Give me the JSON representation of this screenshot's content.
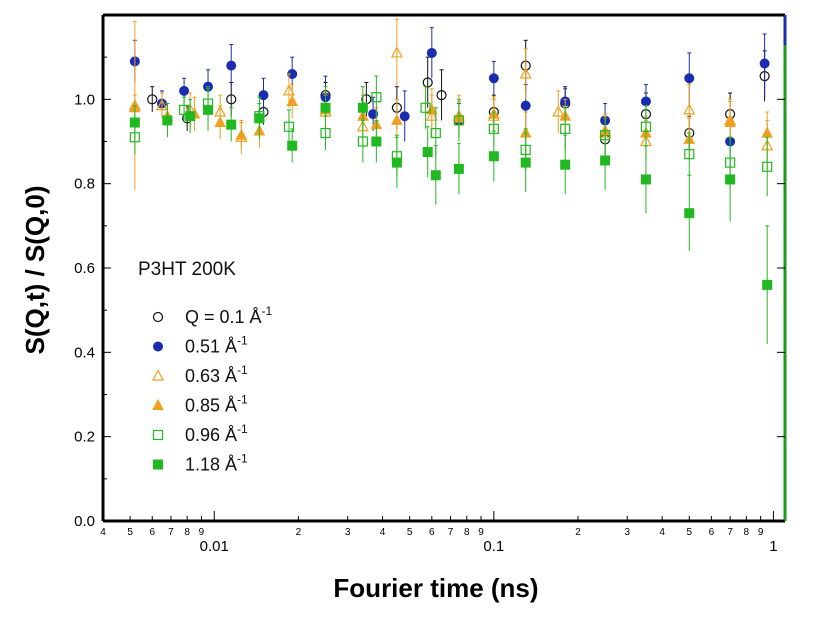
{
  "chart_data": {
    "type": "scatter",
    "xscale": "log",
    "xlim": [
      0.004,
      1.1
    ],
    "ylim": [
      0.0,
      1.2
    ],
    "xlabel": "Fourier time (ns)",
    "ylabel": "S(Q,t) / S(Q,0)",
    "annotation": "P3HT 200K",
    "yticks": [
      "0.0",
      "0.2",
      "0.4",
      "0.6",
      "0.8",
      "1.0"
    ],
    "xticks_major": [
      "0.01",
      "0.1",
      "1"
    ],
    "xticks_minor": [
      "4",
      "5",
      "6",
      "7",
      "8",
      "9",
      "2",
      "3",
      "4",
      "5",
      "6",
      "7",
      "8",
      "9",
      "2",
      "3",
      "4",
      "5",
      "6",
      "7",
      "8",
      "9"
    ],
    "legend_position": "left",
    "series": [
      {
        "name": "Q = 0.1 Å",
        "legend_prefix": "Q = 0.1 Å",
        "sup": "-1",
        "marker": "circle-open",
        "color": "#111111",
        "x": [
          0.006,
          0.008,
          0.0115,
          0.015,
          0.025,
          0.035,
          0.045,
          0.058,
          0.065,
          0.1,
          0.13,
          0.18,
          0.25,
          0.35,
          0.5,
          0.7,
          0.93
        ],
        "y": [
          1.0,
          0.955,
          1.0,
          0.97,
          1.01,
          1.0,
          0.98,
          1.04,
          1.01,
          0.97,
          1.08,
          0.99,
          0.905,
          0.965,
          0.92,
          0.965,
          1.055
        ],
        "err": [
          0.03,
          0.03,
          0.04,
          0.03,
          0.03,
          0.04,
          0.05,
          0.06,
          0.06,
          0.04,
          0.06,
          0.04,
          0.04,
          0.05,
          0.04,
          0.05,
          0.06
        ]
      },
      {
        "name": "0.51 Å",
        "legend_prefix": "0.51 Å",
        "sup": "-1",
        "marker": "circle-filled",
        "color": "#1a2db0",
        "x": [
          0.0052,
          0.0065,
          0.0078,
          0.0095,
          0.0115,
          0.015,
          0.019,
          0.025,
          0.037,
          0.048,
          0.06,
          0.075,
          0.1,
          0.13,
          0.18,
          0.25,
          0.35,
          0.5,
          0.7,
          0.93
        ],
        "y": [
          1.09,
          0.99,
          1.02,
          1.03,
          1.08,
          1.01,
          1.06,
          1.005,
          0.965,
          0.96,
          1.11,
          0.95,
          1.05,
          0.985,
          0.995,
          0.95,
          0.995,
          1.05,
          0.9,
          1.085
        ],
        "err": [
          0.05,
          0.03,
          0.03,
          0.04,
          0.05,
          0.04,
          0.04,
          0.05,
          0.04,
          0.06,
          0.06,
          0.04,
          0.04,
          0.05,
          0.03,
          0.04,
          0.04,
          0.06,
          0.05,
          0.07
        ]
      },
      {
        "name": "0.63 Å",
        "legend_prefix": "0.63 Å",
        "sup": "-1",
        "marker": "triangle-open",
        "color": "#f0a020",
        "x": [
          0.0052,
          0.0065,
          0.0082,
          0.0105,
          0.0125,
          0.0185,
          0.025,
          0.034,
          0.045,
          0.06,
          0.075,
          0.1,
          0.13,
          0.17,
          0.25,
          0.35,
          0.5,
          0.7,
          0.95
        ],
        "y": [
          0.985,
          0.985,
          0.975,
          0.97,
          0.91,
          1.02,
          0.97,
          0.935,
          1.11,
          0.96,
          0.96,
          0.96,
          1.06,
          0.97,
          0.92,
          0.9,
          0.975,
          0.95,
          0.89
        ],
        "err": [
          0.2,
          0.03,
          0.04,
          0.04,
          0.04,
          0.04,
          0.04,
          0.05,
          0.08,
          0.05,
          0.05,
          0.04,
          0.06,
          0.05,
          0.04,
          0.05,
          0.06,
          0.05,
          0.06
        ]
      },
      {
        "name": "0.85 Å",
        "legend_prefix": "0.85 Å",
        "sup": "-1",
        "marker": "triangle-filled",
        "color": "#f0a020",
        "x": [
          0.0052,
          0.0068,
          0.0085,
          0.0105,
          0.0125,
          0.0145,
          0.019,
          0.025,
          0.034,
          0.038,
          0.045,
          0.06,
          0.075,
          0.1,
          0.13,
          0.18,
          0.25,
          0.35,
          0.5,
          0.7,
          0.95
        ],
        "y": [
          0.98,
          0.96,
          0.965,
          0.945,
          0.915,
          0.925,
          0.995,
          0.975,
          0.96,
          0.94,
          0.95,
          0.975,
          0.955,
          0.965,
          0.92,
          0.96,
          0.925,
          0.92,
          0.905,
          0.945,
          0.92
        ],
        "err": [
          0.03,
          0.03,
          0.04,
          0.04,
          0.03,
          0.04,
          0.04,
          0.04,
          0.05,
          0.04,
          0.05,
          0.05,
          0.04,
          0.04,
          0.05,
          0.04,
          0.04,
          0.04,
          0.05,
          0.05,
          0.05
        ]
      },
      {
        "name": "0.96 Å",
        "legend_prefix": "0.96 Å",
        "sup": "-1",
        "marker": "square-open",
        "color": "#22b822",
        "x": [
          0.0052,
          0.0078,
          0.0095,
          0.0145,
          0.0185,
          0.025,
          0.034,
          0.038,
          0.045,
          0.057,
          0.062,
          0.075,
          0.1,
          0.13,
          0.18,
          0.25,
          0.35,
          0.5,
          0.7,
          0.95
        ],
        "y": [
          0.91,
          0.975,
          0.99,
          0.96,
          0.935,
          0.92,
          0.9,
          1.005,
          0.865,
          0.98,
          0.92,
          0.95,
          0.93,
          0.88,
          0.93,
          0.915,
          0.935,
          0.87,
          0.85,
          0.84
        ],
        "err": [
          0.04,
          0.03,
          0.04,
          0.03,
          0.04,
          0.04,
          0.05,
          0.05,
          0.05,
          0.05,
          0.06,
          0.05,
          0.04,
          0.05,
          0.05,
          0.04,
          0.05,
          0.05,
          0.06,
          0.07
        ]
      },
      {
        "name": "1.18 Å",
        "legend_prefix": "1.18 Å",
        "sup": "-1",
        "marker": "square-filled",
        "color": "#22b822",
        "x": [
          0.0052,
          0.0068,
          0.0082,
          0.0095,
          0.0115,
          0.0145,
          0.019,
          0.025,
          0.034,
          0.038,
          0.045,
          0.058,
          0.062,
          0.075,
          0.1,
          0.13,
          0.18,
          0.25,
          0.35,
          0.5,
          0.7,
          0.95
        ],
        "y": [
          0.945,
          0.95,
          0.96,
          0.975,
          0.94,
          0.955,
          0.89,
          0.98,
          0.98,
          0.9,
          0.85,
          0.875,
          0.82,
          0.835,
          0.865,
          0.85,
          0.845,
          0.855,
          0.81,
          0.73,
          0.81,
          0.56
        ],
        "err": [
          0.04,
          0.04,
          0.04,
          0.05,
          0.04,
          0.05,
          0.04,
          0.05,
          0.05,
          0.05,
          0.06,
          0.06,
          0.07,
          0.06,
          0.06,
          0.07,
          0.07,
          0.07,
          0.08,
          0.09,
          0.1,
          0.14
        ]
      }
    ],
    "axis_color": "#000000",
    "right_border_color": "#1d9a1d"
  }
}
